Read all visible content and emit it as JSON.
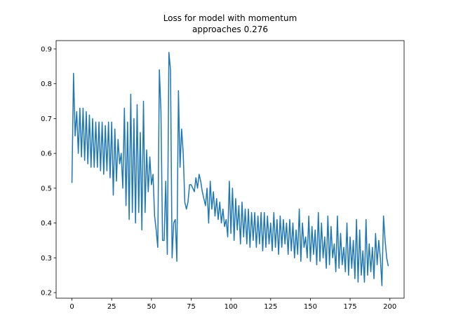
{
  "chart_data": {
    "type": "line",
    "title": [
      "Loss for model with momentum",
      "approaches 0.276"
    ],
    "x": [
      0,
      1,
      2,
      3,
      4,
      5,
      6,
      7,
      8,
      9,
      10,
      11,
      12,
      13,
      14,
      15,
      16,
      17,
      18,
      19,
      20,
      21,
      22,
      23,
      24,
      25,
      26,
      27,
      28,
      29,
      30,
      31,
      32,
      33,
      34,
      35,
      36,
      37,
      38,
      39,
      40,
      41,
      42,
      43,
      44,
      45,
      46,
      47,
      48,
      49,
      50,
      51,
      52,
      53,
      54,
      55,
      56,
      57,
      58,
      59,
      60,
      61,
      62,
      63,
      64,
      65,
      66,
      67,
      68,
      69,
      70,
      71,
      72,
      73,
      74,
      75,
      76,
      77,
      78,
      79,
      80,
      81,
      82,
      83,
      84,
      85,
      86,
      87,
      88,
      89,
      90,
      91,
      92,
      93,
      94,
      95,
      96,
      97,
      98,
      99,
      100,
      101,
      102,
      103,
      104,
      105,
      106,
      107,
      108,
      109,
      110,
      111,
      112,
      113,
      114,
      115,
      116,
      117,
      118,
      119,
      120,
      121,
      122,
      123,
      124,
      125,
      126,
      127,
      128,
      129,
      130,
      131,
      132,
      133,
      134,
      135,
      136,
      137,
      138,
      139,
      140,
      141,
      142,
      143,
      144,
      145,
      146,
      147,
      148,
      149,
      150,
      151,
      152,
      153,
      154,
      155,
      156,
      157,
      158,
      159,
      160,
      161,
      162,
      163,
      164,
      165,
      166,
      167,
      168,
      169,
      170,
      171,
      172,
      173,
      174,
      175,
      176,
      177,
      178,
      179,
      180,
      181,
      182,
      183,
      184,
      185,
      186,
      187,
      188,
      189,
      190,
      191,
      192,
      193,
      194,
      195,
      196,
      197,
      198,
      199
    ],
    "values": [
      0.515,
      0.83,
      0.65,
      0.72,
      0.6,
      0.73,
      0.59,
      0.73,
      0.58,
      0.72,
      0.57,
      0.71,
      0.56,
      0.7,
      0.56,
      0.69,
      0.56,
      0.69,
      0.55,
      0.69,
      0.54,
      0.68,
      0.55,
      0.69,
      0.53,
      0.69,
      0.48,
      0.67,
      0.52,
      0.64,
      0.57,
      0.6,
      0.5,
      0.73,
      0.45,
      0.69,
      0.41,
      0.77,
      0.43,
      0.7,
      0.4,
      0.74,
      0.43,
      0.66,
      0.38,
      0.75,
      0.43,
      0.61,
      0.49,
      0.59,
      0.51,
      0.54,
      0.42,
      0.38,
      0.33,
      0.84,
      0.72,
      0.35,
      0.35,
      0.52,
      0.31,
      0.89,
      0.84,
      0.3,
      0.4,
      0.41,
      0.29,
      0.78,
      0.56,
      0.67,
      0.6,
      0.46,
      0.44,
      0.46,
      0.51,
      0.51,
      0.5,
      0.49,
      0.53,
      0.5,
      0.54,
      0.52,
      0.49,
      0.47,
      0.45,
      0.5,
      0.4,
      0.52,
      0.44,
      0.49,
      0.42,
      0.47,
      0.41,
      0.46,
      0.4,
      0.44,
      0.39,
      0.41,
      0.36,
      0.52,
      0.37,
      0.5,
      0.35,
      0.47,
      0.38,
      0.45,
      0.34,
      0.46,
      0.36,
      0.44,
      0.34,
      0.44,
      0.33,
      0.43,
      0.35,
      0.43,
      0.33,
      0.42,
      0.34,
      0.43,
      0.32,
      0.43,
      0.33,
      0.42,
      0.34,
      0.4,
      0.32,
      0.43,
      0.33,
      0.41,
      0.31,
      0.42,
      0.33,
      0.41,
      0.34,
      0.4,
      0.31,
      0.41,
      0.32,
      0.4,
      0.3,
      0.38,
      0.31,
      0.44,
      0.29,
      0.4,
      0.33,
      0.36,
      0.3,
      0.42,
      0.29,
      0.39,
      0.31,
      0.38,
      0.28,
      0.43,
      0.29,
      0.4,
      0.3,
      0.36,
      0.27,
      0.42,
      0.28,
      0.39,
      0.3,
      0.34,
      0.26,
      0.42,
      0.27,
      0.37,
      0.28,
      0.33,
      0.26,
      0.4,
      0.25,
      0.36,
      0.27,
      0.35,
      0.24,
      0.41,
      0.23,
      0.38,
      0.25,
      0.32,
      0.23,
      0.41,
      0.25,
      0.34,
      0.26,
      0.33,
      0.24,
      0.37,
      0.28,
      0.35,
      0.3,
      0.22,
      0.42,
      0.35,
      0.3,
      0.276
    ],
    "color": "#1f77b4",
    "xlim": [
      -9.95,
      208.95
    ],
    "xticks": [
      0,
      25,
      50,
      75,
      100,
      125,
      150,
      175,
      200
    ],
    "ylim": [
      0.184,
      0.924
    ],
    "yticks": [
      0.2,
      0.3,
      0.4,
      0.5,
      0.6,
      0.7,
      0.8,
      0.9
    ]
  }
}
